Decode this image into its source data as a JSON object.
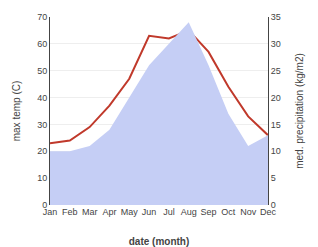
{
  "chart_data": {
    "type": "line",
    "categories": [
      "Jan",
      "Feb",
      "Mar",
      "Apr",
      "May",
      "Jun",
      "Jul",
      "Aug",
      "Sep",
      "Oct",
      "Nov",
      "Dec"
    ],
    "series": [
      {
        "type": "area",
        "axis": "y2",
        "color": "#c5cef5",
        "values": [
          10,
          10,
          11,
          14,
          20,
          26,
          30,
          34,
          26,
          17,
          11,
          13
        ]
      },
      {
        "type": "line",
        "color": "#c0392b",
        "values": [
          23,
          24,
          29,
          37,
          47,
          63,
          62,
          65,
          57,
          44,
          33,
          26
        ]
      }
    ],
    "xlabel": "date (month)",
    "ylabel": "max temp (C)",
    "y2label": "med. precipitation (kg/m2)",
    "ylim": [
      0,
      70
    ],
    "yticks": [
      0,
      10,
      20,
      30,
      40,
      50,
      60,
      70
    ],
    "y2lim": [
      0,
      35
    ],
    "y2ticks": [
      0,
      5,
      10,
      15,
      20,
      25,
      30,
      35
    ],
    "grid": true
  }
}
